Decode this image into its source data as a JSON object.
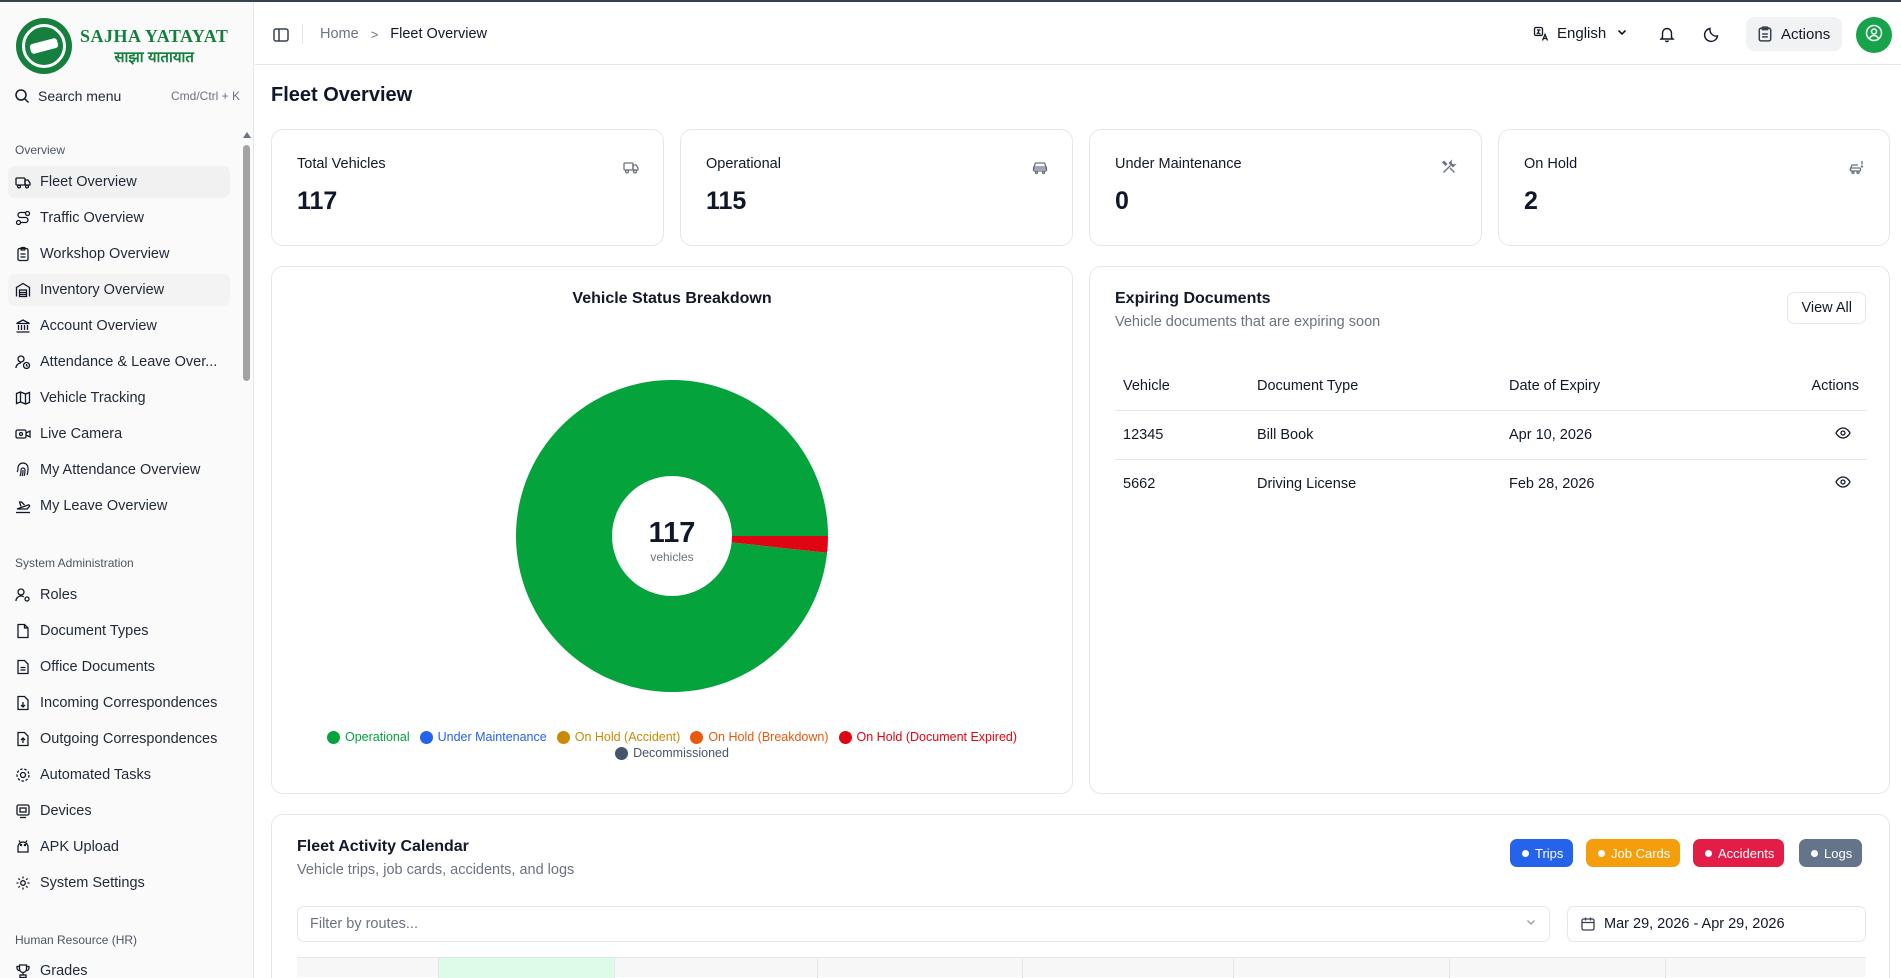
{
  "brand": {
    "name_en": "SAJHA YATAYAT",
    "name_np": "साझा यातायात"
  },
  "search": {
    "label": "Search menu",
    "shortcut": "Cmd/Ctrl + K"
  },
  "sidebar": {
    "sections": [
      {
        "title": "Overview"
      },
      {
        "title": "System Administration"
      },
      {
        "title": "Human Resource (HR)"
      }
    ],
    "overview_items": [
      {
        "label": "Fleet Overview",
        "icon": "truck-icon"
      },
      {
        "label": "Traffic Overview",
        "icon": "route-icon"
      },
      {
        "label": "Workshop Overview",
        "icon": "clipboard-icon"
      },
      {
        "label": "Inventory Overview",
        "icon": "warehouse-icon"
      },
      {
        "label": "Account Overview",
        "icon": "bank-icon"
      },
      {
        "label": "Attendance & Leave Over...",
        "icon": "user-clock-icon"
      },
      {
        "label": "Vehicle Tracking",
        "icon": "map-icon"
      },
      {
        "label": "Live Camera",
        "icon": "video-icon"
      },
      {
        "label": "My Attendance Overview",
        "icon": "fingerprint-icon"
      },
      {
        "label": "My Leave Overview",
        "icon": "plane-icon"
      }
    ],
    "admin_items": [
      {
        "label": "Roles",
        "icon": "user-cog-icon"
      },
      {
        "label": "Document Types",
        "icon": "file-icon"
      },
      {
        "label": "Office Documents",
        "icon": "file-text-icon"
      },
      {
        "label": "Incoming Correspondences",
        "icon": "file-down-icon"
      },
      {
        "label": "Outgoing Correspondences",
        "icon": "file-up-icon"
      },
      {
        "label": "Automated Tasks",
        "icon": "cog-icon"
      },
      {
        "label": "Devices",
        "icon": "device-icon"
      },
      {
        "label": "APK Upload",
        "icon": "android-icon"
      },
      {
        "label": "System Settings",
        "icon": "settings-icon"
      }
    ],
    "hr_items": [
      {
        "label": "Grades",
        "icon": "trophy-icon"
      }
    ]
  },
  "header": {
    "breadcrumb": {
      "home": "Home",
      "separator": ">",
      "current": "Fleet Overview"
    },
    "language": "English",
    "actions_label": "Actions"
  },
  "page": {
    "title": "Fleet Overview"
  },
  "stats": [
    {
      "label": "Total Vehicles",
      "value": "117",
      "icon": "truck-icon"
    },
    {
      "label": "Operational",
      "value": "115",
      "icon": "car-icon"
    },
    {
      "label": "Under Maintenance",
      "value": "0",
      "icon": "wrench-icon"
    },
    {
      "label": "On Hold",
      "value": "2",
      "icon": "car-alert-icon"
    }
  ],
  "chart_data": {
    "type": "pie",
    "title": "Vehicle Status Breakdown",
    "center_value": "117",
    "center_label": "vehicles",
    "series": [
      {
        "name": "Operational",
        "value": 115,
        "color": "#04a33b"
      },
      {
        "name": "Under Maintenance",
        "value": 0,
        "color": "#2563eb"
      },
      {
        "name": "On Hold (Accident)",
        "value": 0,
        "color": "#ca8a04"
      },
      {
        "name": "On Hold (Breakdown)",
        "value": 0,
        "color": "#ea580c"
      },
      {
        "name": "On Hold (Document Expired)",
        "value": 2,
        "color": "#e00512"
      },
      {
        "name": "Decommissioned",
        "value": 0,
        "color": "#475569"
      }
    ],
    "legend_position": "bottom"
  },
  "documents": {
    "title": "Expiring Documents",
    "subtitle": "Vehicle documents that are expiring soon",
    "view_all": "View All",
    "columns": [
      "Vehicle",
      "Document Type",
      "Date of Expiry",
      "Actions"
    ],
    "rows": [
      {
        "vehicle": "12345",
        "type": "Bill Book",
        "expiry": "Apr 10, 2026"
      },
      {
        "vehicle": "5662",
        "type": "Driving License",
        "expiry": "Feb 28, 2026"
      }
    ]
  },
  "calendar": {
    "title": "Fleet Activity Calendar",
    "subtitle": "Vehicle trips, job cards, accidents, and logs",
    "filters": [
      {
        "label": "Trips",
        "color": "#2563eb"
      },
      {
        "label": "Job Cards",
        "color": "#f59e0b"
      },
      {
        "label": "Accidents",
        "color": "#e11d48"
      },
      {
        "label": "Logs",
        "color": "#64748b"
      }
    ],
    "route_placeholder": "Filter by routes...",
    "date_range": "Mar 29, 2026 - Apr 29, 2026"
  }
}
